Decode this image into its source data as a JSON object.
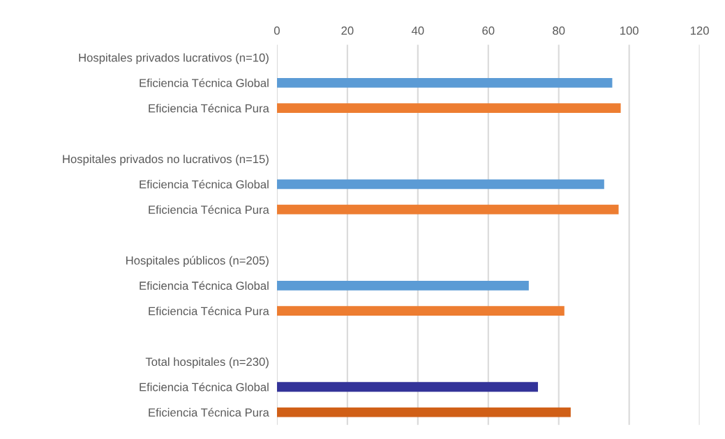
{
  "chart_data": {
    "type": "bar",
    "orientation": "horizontal",
    "categories": [
      "Hospitales privados lucrativos (n=10)",
      "Eficiencia Técnica Global",
      "Eficiencia Técnica Pura",
      null,
      "Hospitales privados no lucrativos (n=15)",
      "Eficiencia Técnica Global",
      "Eficiencia Técnica Pura",
      null,
      "Hospitales públicos (n=205)",
      "Eficiencia Técnica Global",
      "Eficiencia Técnica Pura",
      null,
      "Total hospitales (n=230)",
      "Eficiencia Técnica Global",
      "Eficiencia Técnica Pura"
    ],
    "values": [
      null,
      95.2,
      97.6,
      null,
      null,
      92.9,
      97.0,
      null,
      null,
      71.5,
      81.6,
      null,
      null,
      74.1,
      83.4
    ],
    "colors": [
      "#5b9bd5",
      "#5b9bd5",
      "#ed7d31",
      "#5b9bd5",
      "#5b9bd5",
      "#5b9bd5",
      "#ed7d31",
      "#5b9bd5",
      "#5b9bd5",
      "#5b9bd5",
      "#ed7d31",
      "#5b9bd5",
      "#5b9bd5",
      "#333399",
      "#d05f17"
    ],
    "xlim": [
      0,
      120
    ],
    "xticks": [
      0,
      20,
      40,
      60,
      80,
      100,
      120
    ],
    "grid": "x"
  }
}
